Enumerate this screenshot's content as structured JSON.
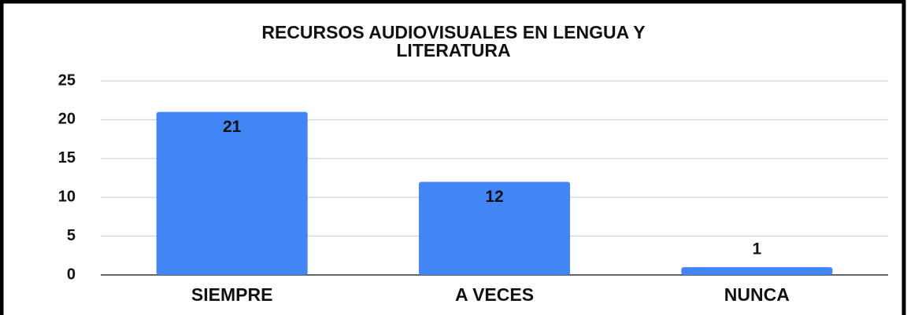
{
  "chart_data": {
    "type": "bar",
    "title": "RECURSOS AUDIOVISUALES EN LENGUA Y LITERATURA",
    "categories": [
      "SIEMPRE",
      "A VECES",
      "NUNCA"
    ],
    "values": [
      21,
      12,
      1
    ],
    "color": "#4285f4",
    "ylim": [
      0,
      25
    ],
    "yticks": [
      0,
      5,
      10,
      15,
      20,
      25
    ],
    "grid": true
  }
}
